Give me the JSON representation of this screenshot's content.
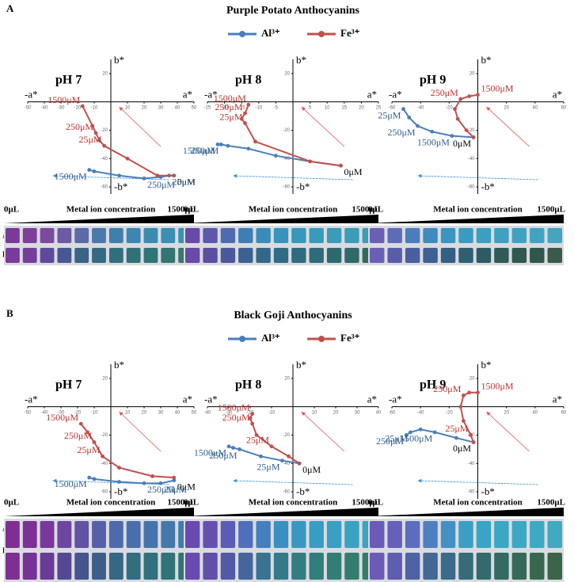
{
  "panels": [
    {
      "label": "A",
      "title": "Purple Potato Anthocyanins",
      "rows": [
        "Al³⁺",
        "Fe³⁺"
      ]
    },
    {
      "label": "B",
      "title": "Black Goji Anthocyanins",
      "rows": [
        "Al³⁺",
        "Fe³⁺"
      ]
    }
  ],
  "chart_data": [
    {
      "type": "line",
      "title": "pH 7",
      "axis_labels": {
        "x_neg": "-a*",
        "x_pos": "a*",
        "y_pos": "b*",
        "y_neg": "-b*"
      },
      "xlim": [
        -50,
        50
      ],
      "ylim": [
        -65,
        30
      ],
      "xticks": [
        -50,
        -40,
        -30,
        -20,
        -10,
        10,
        20,
        30,
        40,
        50
      ],
      "yticks": [
        20,
        -20,
        -40,
        -60
      ],
      "series": [
        {
          "name": "Al³⁺",
          "color": "#4a7ebb",
          "x": [
            38,
            35,
            30,
            20,
            5,
            -10,
            -13
          ],
          "y": [
            -52,
            -52,
            -53,
            -54,
            -52,
            -49,
            -48
          ],
          "value_labels": [
            "0μM",
            "25μM",
            null,
            "250μM",
            null,
            null,
            "1500μM"
          ]
        },
        {
          "name": "Fe³⁺",
          "color": "#c0504d",
          "x": [
            38,
            28,
            10,
            -4,
            -7,
            -9,
            -11,
            -17
          ],
          "y": [
            -52,
            -52,
            -40,
            -31,
            -27,
            -22,
            -17,
            -3
          ],
          "value_labels": [
            null,
            null,
            null,
            "25μM",
            null,
            "250μM",
            null,
            "1500μM"
          ]
        }
      ],
      "strip": {
        "start": "0μL",
        "label": "Metal ion concentration",
        "end": "1500μL"
      }
    },
    {
      "type": "line",
      "title": "pH 8",
      "axis_labels": {
        "x_neg": "-a*",
        "x_pos": "a*",
        "y_pos": "b*",
        "y_neg": "-b*"
      },
      "xlim": [
        -25,
        25
      ],
      "ylim": [
        -65,
        30
      ],
      "xticks": [
        -25,
        -20,
        -15,
        -10,
        -5,
        5,
        10,
        15,
        20,
        25
      ],
      "yticks": [
        20,
        -20,
        -40,
        -60
      ],
      "series": [
        {
          "name": "Al³⁺",
          "color": "#4a7ebb",
          "x": [
            14,
            5,
            -5,
            -13,
            -19,
            -21,
            -22
          ],
          "y": [
            -45,
            -42,
            -38,
            -33,
            -31,
            -30,
            -30
          ],
          "value_labels": [
            "0μM",
            null,
            null,
            null,
            null,
            "250μM",
            "1500μM"
          ]
        },
        {
          "name": "Fe³⁺",
          "color": "#c0504d",
          "x": [
            14,
            5,
            -11,
            -14,
            -15,
            -14,
            -13
          ],
          "y": [
            -45,
            -42,
            -28,
            -15,
            -12,
            -8,
            -2
          ],
          "value_labels": [
            null,
            null,
            null,
            "25μM",
            null,
            "250μM",
            "1500μM"
          ]
        }
      ],
      "strip": {
        "start": "0μL",
        "label": "Metal ion concentration",
        "end": "1500μL"
      }
    },
    {
      "type": "line",
      "title": "pH 9",
      "axis_labels": {
        "x_neg": "-a*",
        "x_pos": "a*",
        "y_pos": "b*",
        "y_neg": "-b*"
      },
      "xlim": [
        -60,
        60
      ],
      "ylim": [
        -65,
        30
      ],
      "xticks": [
        -60,
        -40,
        -20,
        20,
        40,
        60
      ],
      "yticks": [
        20,
        -20,
        -40,
        -60
      ],
      "series": [
        {
          "name": "Al³⁺",
          "color": "#4a7ebb",
          "x": [
            -52,
            -48,
            -42,
            -32,
            -18,
            -3
          ],
          "y": [
            -5,
            -11,
            -17,
            -21,
            -24,
            -25
          ],
          "value_labels": [
            "25μM",
            null,
            "250μM",
            null,
            "1500μM",
            "0μM"
          ]
        },
        {
          "name": "Fe³⁺",
          "color": "#c0504d",
          "x": [
            -3,
            -8,
            -14,
            -16,
            -12,
            -6,
            0
          ],
          "y": [
            -25,
            -20,
            -12,
            -5,
            2,
            4,
            5
          ],
          "value_labels": [
            null,
            null,
            null,
            null,
            "250μM",
            null,
            "1500μM"
          ]
        }
      ],
      "strip": {
        "start": "0μL",
        "label": "Metal ion concentration",
        "end": "1500μL"
      }
    },
    {
      "type": "line",
      "title": "pH 7",
      "axis_labels": {
        "x_neg": "-a*",
        "x_pos": "a*",
        "y_pos": "b*",
        "y_neg": "-b*"
      },
      "xlim": [
        -50,
        50
      ],
      "ylim": [
        -65,
        30
      ],
      "xticks": [
        -50,
        -40,
        -30,
        -20,
        -10,
        10,
        20,
        30,
        40,
        50
      ],
      "yticks": [
        20,
        -20,
        -40,
        -60
      ],
      "series": [
        {
          "name": "Al³⁺",
          "color": "#4a7ebb",
          "x": [
            38,
            30,
            20,
            5,
            -10,
            -13
          ],
          "y": [
            -52,
            -54,
            -54,
            -53,
            -51,
            -50
          ],
          "value_labels": [
            "0μM",
            "25μM",
            "250μM",
            null,
            null,
            "1500μM"
          ]
        },
        {
          "name": "Fe³⁺",
          "color": "#c0504d",
          "x": [
            38,
            25,
            5,
            -5,
            -10,
            -14,
            -18
          ],
          "y": [
            -50,
            -49,
            -43,
            -35,
            -25,
            -18,
            -12
          ],
          "value_labels": [
            null,
            null,
            null,
            "25μM",
            "250μM",
            null,
            "1500μM"
          ]
        }
      ],
      "strip": {
        "start": "0μL",
        "label": "Metal ion concentration",
        "end": "1500μL"
      }
    },
    {
      "type": "line",
      "title": "pH 8",
      "axis_labels": {
        "x_neg": "-a*",
        "x_pos": "a*",
        "y_pos": "b*",
        "y_neg": "-b*"
      },
      "xlim": [
        -40,
        40
      ],
      "ylim": [
        -65,
        30
      ],
      "xticks": [
        -40,
        -30,
        -20,
        -10,
        10,
        20,
        30,
        40
      ],
      "yticks": [
        20,
        -20,
        -40,
        -60
      ],
      "series": [
        {
          "name": "Al³⁺",
          "color": "#4a7ebb",
          "x": [
            3,
            -5,
            -15,
            -25,
            -28,
            -30
          ],
          "y": [
            -40,
            -38,
            -35,
            -30,
            -29,
            -28
          ],
          "value_labels": [
            "0μM",
            "25μM",
            null,
            "250μM",
            null,
            "1500μM"
          ]
        },
        {
          "name": "Fe³⁺",
          "color": "#c0504d",
          "x": [
            3,
            -2,
            -10,
            -17,
            -19,
            -20,
            -19
          ],
          "y": [
            -40,
            -35,
            -28,
            -20,
            -12,
            -8,
            -5
          ],
          "value_labels": [
            null,
            null,
            "25μM",
            null,
            "250μM",
            null,
            "1500μM"
          ]
        }
      ],
      "strip": {
        "start": "0μL",
        "label": "Metal ion concentration",
        "end": "1500μL"
      }
    },
    {
      "type": "line",
      "title": "pH 9",
      "axis_labels": {
        "x_neg": "-a*",
        "x_pos": "a*",
        "y_pos": "b*",
        "y_neg": "-b*"
      },
      "xlim": [
        -60,
        60
      ],
      "ylim": [
        -65,
        30
      ],
      "xticks": [
        -60,
        -40,
        -20,
        20,
        40,
        60
      ],
      "yticks": [
        20,
        -20,
        -40,
        -60
      ],
      "series": [
        {
          "name": "Al³⁺",
          "color": "#4a7ebb",
          "x": [
            -50,
            -47,
            -40,
            -30,
            -15,
            -3
          ],
          "y": [
            -20,
            -18,
            -16,
            -18,
            -22,
            -25
          ],
          "value_labels": [
            "250μM",
            "25μM",
            null,
            "1500μM",
            null,
            "0μM"
          ]
        },
        {
          "name": "Fe³⁺",
          "color": "#c0504d",
          "x": [
            -3,
            -5,
            -10,
            -12,
            -10,
            -6,
            0
          ],
          "y": [
            -25,
            -20,
            -10,
            0,
            8,
            10,
            10
          ],
          "value_labels": [
            null,
            "25μM",
            null,
            null,
            "250μM",
            null,
            "1500μM"
          ]
        }
      ],
      "strip": {
        "start": "0μL",
        "label": "Metal ion concentration",
        "end": "1500μL"
      }
    }
  ]
}
